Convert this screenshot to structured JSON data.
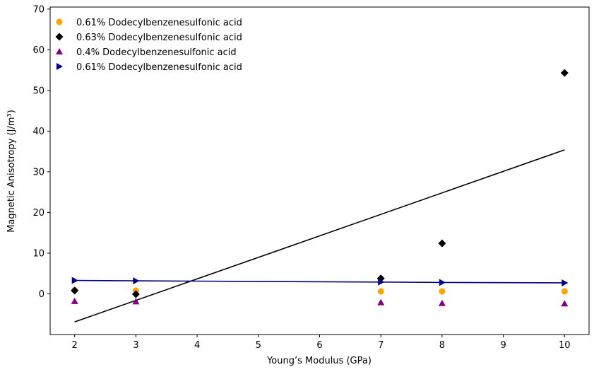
{
  "chart_data": {
    "type": "scatter",
    "title": "",
    "xlabel": "Young’s Modulus (GPa)",
    "ylabel": "Magnetic Anisotropy (J/m³)",
    "xlim": [
      1.6,
      10.4
    ],
    "ylim": [
      -10,
      70.5
    ],
    "xticks": [
      2,
      3,
      4,
      5,
      6,
      7,
      8,
      9,
      10
    ],
    "yticks": [
      0,
      10,
      20,
      30,
      40,
      50,
      60,
      70
    ],
    "grid": false,
    "legend_position": "top-left",
    "series": [
      {
        "name": "0.61% Dodecylbenzenesulfonic acid",
        "marker": "circle",
        "color": "#ffa500",
        "x": [
          2,
          3,
          7,
          8,
          10
        ],
        "y": [
          0.9,
          0.8,
          0.6,
          0.6,
          0.6
        ]
      },
      {
        "name": "0.63% Dodecylbenzenesulfonic acid",
        "marker": "diamond",
        "color": "#000000",
        "x": [
          2,
          3,
          7,
          8,
          10
        ],
        "y": [
          0.8,
          -0.1,
          3.8,
          12.4,
          54.3
        ]
      },
      {
        "name": "0.4% Dodecylbenzenesulfonic acid",
        "marker": "triangle-up",
        "color": "#800080",
        "x": [
          2,
          3,
          7,
          8,
          10
        ],
        "y": [
          -1.8,
          -1.9,
          -2.1,
          -2.3,
          -2.4
        ]
      },
      {
        "name": "0.61% Dodecylbenzenesulfonic acid",
        "marker": "triangle-right",
        "color": "#000080",
        "x": [
          2,
          3,
          7,
          8,
          10
        ],
        "y": [
          3.3,
          3.2,
          2.9,
          2.8,
          2.7
        ],
        "line": true
      }
    ],
    "fit_lines": [
      {
        "color": "#000000",
        "x": [
          2,
          10
        ],
        "y": [
          -6.9,
          35.4
        ]
      }
    ]
  }
}
